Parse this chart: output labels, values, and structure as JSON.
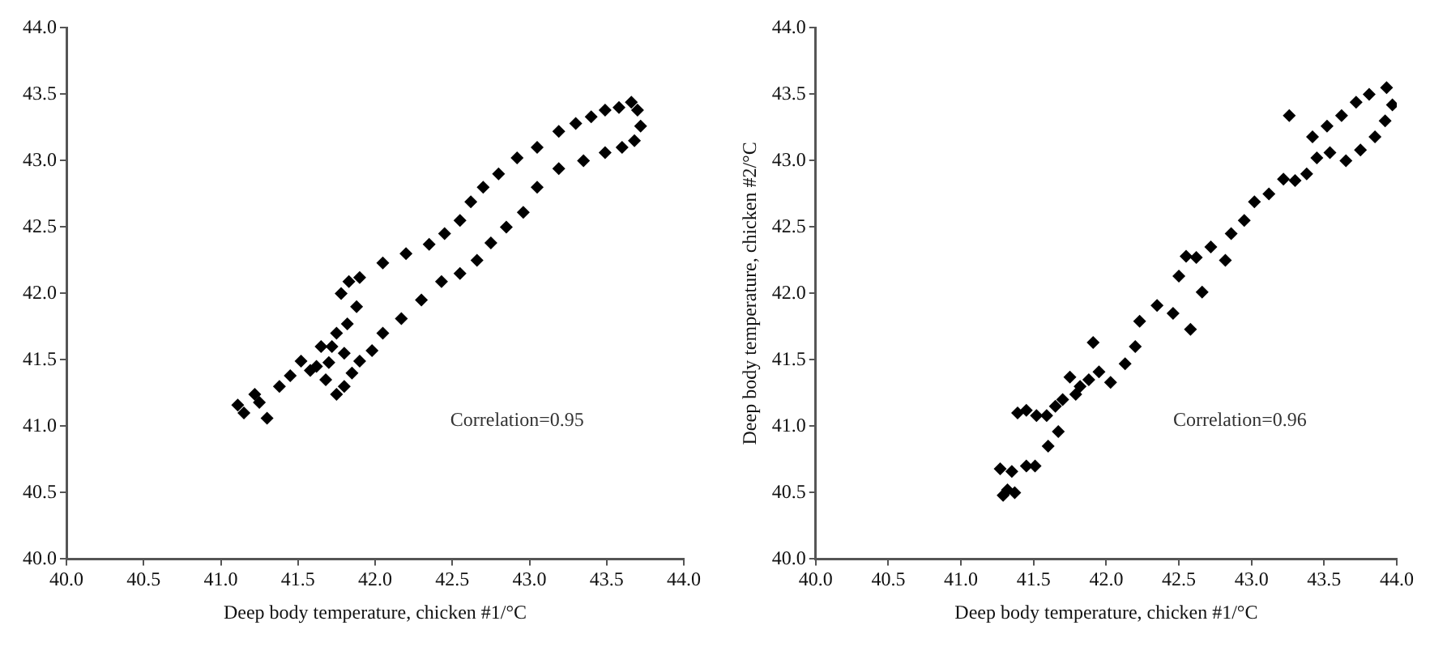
{
  "chart_data": [
    {
      "type": "scatter",
      "xlabel": "Deep body temperature, chicken #1/°C",
      "marker": "diamond",
      "grid": false,
      "xlim": [
        40,
        44
      ],
      "ylim": [
        40,
        44
      ],
      "xticks": [
        {
          "value": 40,
          "label": "40.0"
        },
        {
          "value": 40.5,
          "label": "40.5"
        },
        {
          "value": 41,
          "label": "41.0"
        },
        {
          "value": 41.5,
          "label": "41.5"
        },
        {
          "value": 42,
          "label": "42.0"
        },
        {
          "value": 42.5,
          "label": "42.5"
        },
        {
          "value": 43,
          "label": "43.0"
        },
        {
          "value": 43.5,
          "label": "43.5"
        },
        {
          "value": 44,
          "label": "44.0"
        }
      ],
      "yticks": [
        {
          "value": 40,
          "label": "40.0"
        },
        {
          "value": 40.5,
          "label": "40.5"
        },
        {
          "value": 41,
          "label": "41.0"
        },
        {
          "value": 41.5,
          "label": "41.5"
        },
        {
          "value": 42,
          "label": "42.0"
        },
        {
          "value": 42.5,
          "label": "42.5"
        },
        {
          "value": 43,
          "label": "43.0"
        },
        {
          "value": 43.5,
          "label": "43.5"
        },
        {
          "value": 44,
          "label": "44.0"
        }
      ],
      "annotations": [
        "Correlation=0.95"
      ],
      "series": [
        {
          "color": "#000000",
          "x": [
            41.11,
            41.15,
            41.22,
            41.3,
            41.25,
            41.38,
            41.45,
            41.52,
            41.58,
            41.62,
            41.68,
            41.75,
            41.8,
            41.85,
            41.9,
            41.7,
            41.65,
            41.75,
            41.82,
            41.88,
            41.78,
            41.72,
            41.8,
            41.83,
            41.9,
            42.05,
            42.2,
            42.35,
            42.45,
            42.55,
            42.62,
            42.7,
            42.8,
            42.92,
            43.05,
            43.19,
            43.3,
            43.4,
            43.49,
            43.58,
            43.66,
            43.7,
            43.72,
            43.68,
            43.6,
            43.49,
            43.35,
            43.19,
            43.05,
            42.96,
            42.85,
            42.75,
            42.66,
            42.55,
            42.43,
            42.3,
            42.17,
            42.05,
            41.98
          ],
          "values": [
            41.16,
            41.1,
            41.24,
            41.06,
            41.18,
            41.3,
            41.38,
            41.49,
            41.42,
            41.45,
            41.35,
            41.24,
            41.3,
            41.4,
            41.49,
            41.48,
            41.6,
            41.7,
            41.77,
            41.9,
            42.0,
            41.6,
            41.55,
            42.09,
            42.12,
            42.23,
            42.3,
            42.37,
            42.45,
            42.55,
            42.69,
            42.8,
            42.9,
            43.02,
            43.1,
            43.22,
            43.28,
            43.33,
            43.38,
            43.4,
            43.44,
            43.38,
            43.26,
            43.15,
            43.1,
            43.06,
            43.0,
            42.94,
            42.8,
            42.61,
            42.5,
            42.38,
            42.25,
            42.15,
            42.09,
            41.95,
            41.81,
            41.7,
            41.57
          ]
        }
      ]
    },
    {
      "type": "scatter",
      "xlabel": "Deep body temperature, chicken #1/°C",
      "ylabel": "Deep body temperature, chicken #2/°C",
      "marker": "diamond",
      "grid": false,
      "xlim": [
        40,
        44
      ],
      "ylim": [
        40,
        44
      ],
      "xticks": [
        {
          "value": 40,
          "label": "40.0"
        },
        {
          "value": 40.5,
          "label": "40.5"
        },
        {
          "value": 41,
          "label": "41.0"
        },
        {
          "value": 41.5,
          "label": "41.5"
        },
        {
          "value": 42,
          "label": "42.0"
        },
        {
          "value": 42.5,
          "label": "42.5"
        },
        {
          "value": 43,
          "label": "43.0"
        },
        {
          "value": 43.5,
          "label": "43.5"
        },
        {
          "value": 44,
          "label": "44.0"
        }
      ],
      "yticks": [
        {
          "value": 40,
          "label": "40.0"
        },
        {
          "value": 40.5,
          "label": "40.5"
        },
        {
          "value": 41,
          "label": "41.0"
        },
        {
          "value": 41.5,
          "label": "41.5"
        },
        {
          "value": 42,
          "label": "42.0"
        },
        {
          "value": 42.5,
          "label": "42.5"
        },
        {
          "value": 43,
          "label": "43.0"
        },
        {
          "value": 43.5,
          "label": "43.5"
        },
        {
          "value": 44,
          "label": "44.0"
        }
      ],
      "annotations": [
        "Correlation=0.96"
      ],
      "series": [
        {
          "color": "#000000",
          "x": [
            41.29,
            41.32,
            41.37,
            41.27,
            41.35,
            41.45,
            41.51,
            41.6,
            41.67,
            41.39,
            41.45,
            41.52,
            41.59,
            41.65,
            41.7,
            41.79,
            41.75,
            41.82,
            41.88,
            41.95,
            41.91,
            42.03,
            42.13,
            42.2,
            42.23,
            42.35,
            42.46,
            42.58,
            42.5,
            42.55,
            42.66,
            42.62,
            42.72,
            42.82,
            42.86,
            42.95,
            43.02,
            43.12,
            43.22,
            43.26,
            43.3,
            43.38,
            43.45,
            43.54,
            43.65,
            43.75,
            43.85,
            43.92,
            43.97,
            43.93,
            43.81,
            43.72,
            43.62,
            43.52,
            43.42
          ],
          "values": [
            40.48,
            40.52,
            40.5,
            40.68,
            40.66,
            40.7,
            40.7,
            40.85,
            40.96,
            41.1,
            41.12,
            41.08,
            41.08,
            41.15,
            41.2,
            41.24,
            41.37,
            41.3,
            41.35,
            41.41,
            41.63,
            41.33,
            41.47,
            41.6,
            41.79,
            41.91,
            41.85,
            41.73,
            42.13,
            42.28,
            42.01,
            42.27,
            42.35,
            42.25,
            42.45,
            42.55,
            42.69,
            42.75,
            42.86,
            43.34,
            42.85,
            42.9,
            43.02,
            43.06,
            43.0,
            43.08,
            43.18,
            43.3,
            43.42,
            43.55,
            43.5,
            43.44,
            43.34,
            43.26,
            43.18
          ]
        }
      ]
    }
  ]
}
